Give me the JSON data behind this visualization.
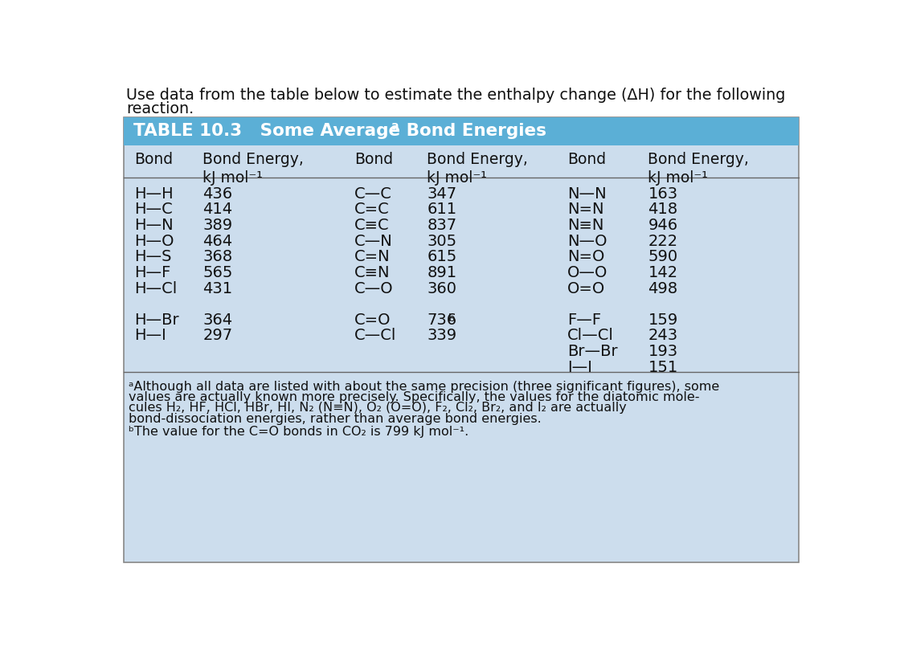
{
  "header_bg": "#5bafd6",
  "table_bg": "#ccdded",
  "outer_bg": "#ffffff",
  "intro_line1": "Use data from the table below to estimate the enthalpy change (ΔH) for the following",
  "intro_line2": "reaction.",
  "table_title": "TABLE 10.3   Some Average Bond Energies",
  "col1_bonds": [
    "H—H",
    "H—C",
    "H—N",
    "H—O",
    "H—S",
    "H—F",
    "H—Cl",
    null,
    "H—Br",
    "H—I"
  ],
  "col1_energies": [
    "436",
    "414",
    "389",
    "464",
    "368",
    "565",
    "431",
    null,
    "364",
    "297"
  ],
  "col2_bonds": [
    "C—C",
    "C=C",
    "C≡C",
    "C—N",
    "C=N",
    "C≡N",
    "C—O",
    null,
    "C=O",
    "C—Cl"
  ],
  "col2_energies": [
    "347",
    "611",
    "837",
    "305",
    "615",
    "891",
    "360",
    null,
    "736b",
    "339"
  ],
  "col3_bonds": [
    "N—N",
    "N=N",
    "N≡N",
    "N—O",
    "N=O",
    "O—O",
    "O=O",
    null,
    "F—F",
    "Cl—Cl",
    "Br—Br",
    "I—I"
  ],
  "col3_energies": [
    "163",
    "418",
    "946",
    "222",
    "590",
    "142",
    "498",
    null,
    "159",
    "243",
    "193",
    "151"
  ],
  "fn_a_lines": [
    "ᵃAlthough all data are listed with about the same precision (three significant figures), some",
    "values are actually known more precisely. Specifically, the values for the diatomic mole-",
    "cules H₂, HF, HCl, HBr, HI, N₂ (N≡N), O₂ (O=O), F₂, Cl₂, Br₂, and I₂ are actually",
    "bond-dissociation energies, rather than average bond energies."
  ],
  "fn_b": "ᵇThe value for the C=O bonds in CO₂ is 799 kJ mol⁻¹."
}
